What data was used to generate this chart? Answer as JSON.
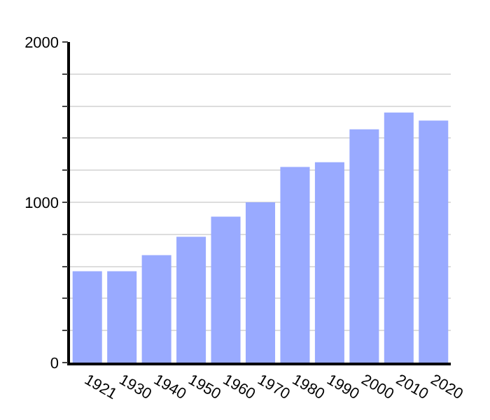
{
  "chart_data": {
    "type": "bar",
    "categories": [
      "1921",
      "1930",
      "1940",
      "1950",
      "1960",
      "1970",
      "1980",
      "1990",
      "2000",
      "2010",
      "2020"
    ],
    "values": [
      570,
      570,
      670,
      785,
      910,
      1000,
      1220,
      1250,
      1455,
      1560,
      1510
    ],
    "color": "#99aaff",
    "ylim": [
      0,
      2000
    ],
    "yticks": [
      0,
      {
        "value": 200,
        "label": null
      },
      {
        "value": 400,
        "label": null
      },
      {
        "value": 600,
        "label": null
      },
      {
        "value": 800,
        "label": null
      },
      1000,
      {
        "value": 1200,
        "label": null
      },
      {
        "value": 1400,
        "label": null
      },
      {
        "value": 1600,
        "label": null
      },
      {
        "value": 1800,
        "label": null
      },
      2000
    ],
    "grid": "y"
  }
}
